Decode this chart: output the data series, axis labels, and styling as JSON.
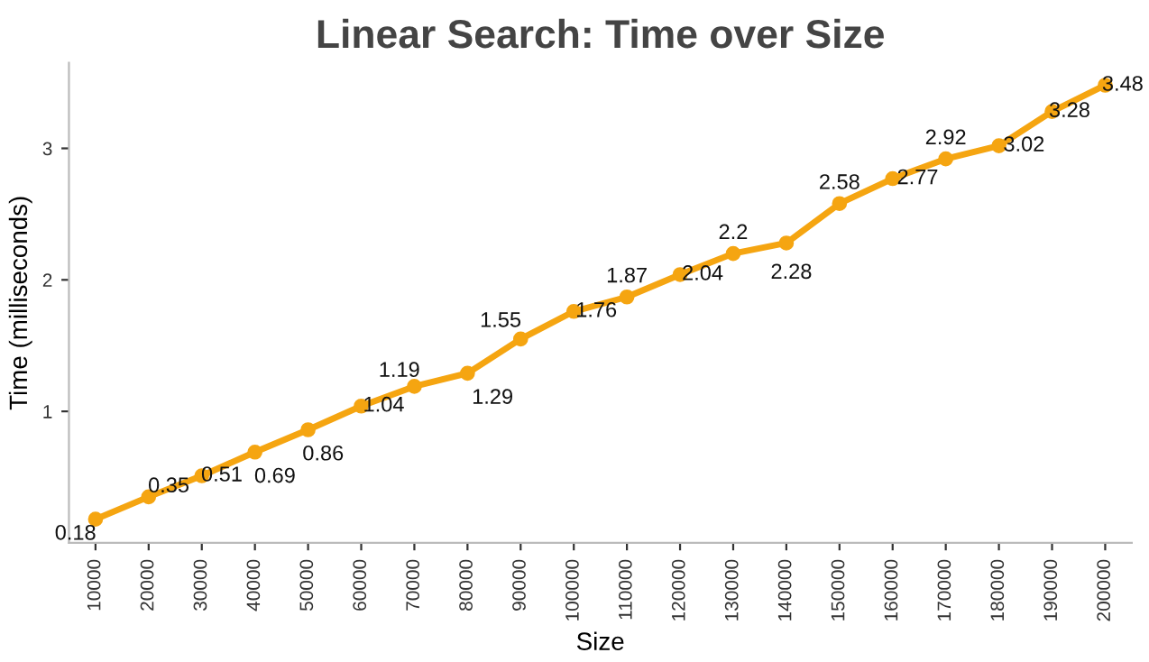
{
  "chart_data": {
    "type": "line",
    "title": "Linear Search: Time over Size",
    "xlabel": "Size",
    "ylabel": "Time (milliseconds)",
    "categories": [
      "10000",
      "20000",
      "30000",
      "40000",
      "50000",
      "60000",
      "70000",
      "80000",
      "90000",
      "100000",
      "110000",
      "120000",
      "130000",
      "140000",
      "150000",
      "160000",
      "170000",
      "180000",
      "190000",
      "200000"
    ],
    "series": [
      {
        "color": "#f5a511",
        "values": [
          0.18,
          0.35,
          0.51,
          0.69,
          0.86,
          1.04,
          1.19,
          1.29,
          1.55,
          1.76,
          1.87,
          2.04,
          2.2,
          2.28,
          2.58,
          2.77,
          2.92,
          3.02,
          3.28,
          3.48
        ]
      }
    ],
    "ylim": [
      0,
      3.65
    ],
    "yticks": [
      1,
      2,
      3
    ],
    "data_labels": true,
    "marker": "circle",
    "line_style": "solid",
    "grid": false,
    "legend": false
  }
}
